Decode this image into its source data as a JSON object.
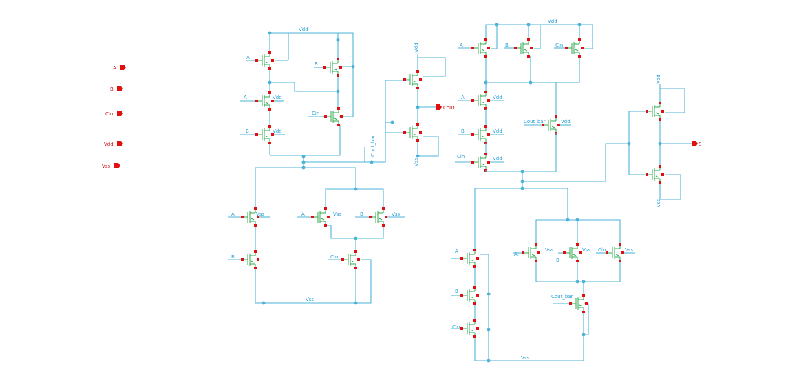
{
  "ports": [
    {
      "id": "A",
      "label": "A"
    },
    {
      "id": "B",
      "label": "B"
    },
    {
      "id": "Cin",
      "label": "Cin"
    },
    {
      "id": "Vdd",
      "label": "Vdd"
    },
    {
      "id": "Vss",
      "label": "Vss"
    },
    {
      "id": "Cout",
      "label": "Cout"
    },
    {
      "id": "S",
      "label": "S"
    }
  ],
  "labels": {
    "vdd": "Vdd",
    "vss": "Vss",
    "a": "A",
    "b": "B",
    "cin": "Cin",
    "cout_bar": "Cout_bar",
    "cout": "Cout",
    "s": "S"
  },
  "colors": {
    "wire": "#4fb3d9",
    "transistor": "#2fa84f",
    "pin": "#e01010",
    "label": "#2a9fd6"
  }
}
